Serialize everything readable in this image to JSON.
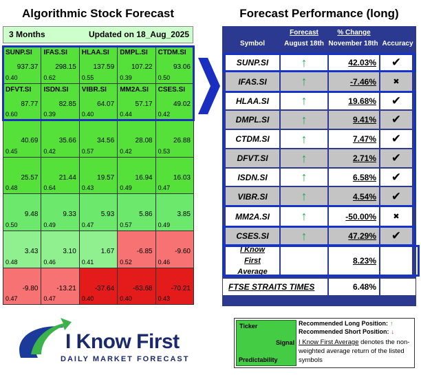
{
  "left": {
    "title": "Algorithmic Stock Forecast",
    "period": "3 Months",
    "updated": "Updated on 18_Aug_2025",
    "rows": [
      [
        {
          "ticker": "SUNP.SI",
          "signal": "937.37",
          "predictability": "0.40"
        },
        {
          "ticker": "IFAS.SI",
          "signal": "298.15",
          "predictability": "0.62"
        },
        {
          "ticker": "HLAA.SI",
          "signal": "137.59",
          "predictability": "0.55"
        },
        {
          "ticker": "DMPL.SI",
          "signal": "107.22",
          "predictability": "0.39"
        },
        {
          "ticker": "CTDM.SI",
          "signal": "93.06",
          "predictability": "0.50"
        }
      ],
      [
        {
          "ticker": "DFVT.SI",
          "signal": "87.77",
          "predictability": "0.60"
        },
        {
          "ticker": "ISDN.SI",
          "signal": "82.85",
          "predictability": "0.39"
        },
        {
          "ticker": "VIBR.SI",
          "signal": "64.07",
          "predictability": "0.40"
        },
        {
          "ticker": "MM2A.SI",
          "signal": "57.17",
          "predictability": "0.44"
        },
        {
          "ticker": "CSES.SI",
          "signal": "49.02",
          "predictability": "0.42"
        }
      ],
      [
        {
          "signal": "40.69",
          "predictability": "0.45"
        },
        {
          "signal": "35.66",
          "predictability": "0.42"
        },
        {
          "signal": "34.56",
          "predictability": "0.57"
        },
        {
          "signal": "28.08",
          "predictability": "0.42"
        },
        {
          "signal": "26.88",
          "predictability": "0.53"
        }
      ],
      [
        {
          "signal": "25.57",
          "predictability": "0.48"
        },
        {
          "signal": "21.44",
          "predictability": "0.64"
        },
        {
          "signal": "19.57",
          "predictability": "0.43"
        },
        {
          "signal": "16.94",
          "predictability": "0.49"
        },
        {
          "signal": "16.03",
          "predictability": "0.47"
        }
      ],
      [
        {
          "signal": "9.48",
          "predictability": "0.50"
        },
        {
          "signal": "9.33",
          "predictability": "0.49"
        },
        {
          "signal": "5.93",
          "predictability": "0.47"
        },
        {
          "signal": "5.86",
          "predictability": "0.57"
        },
        {
          "signal": "3.85",
          "predictability": "0.49"
        }
      ],
      [
        {
          "signal": "3.43",
          "predictability": "0.48"
        },
        {
          "signal": "3.10",
          "predictability": "0.46"
        },
        {
          "signal": "1.67",
          "predictability": "0.41"
        },
        {
          "signal": "-6.85",
          "predictability": "0.52"
        },
        {
          "signal": "-9.60",
          "predictability": "0.46"
        }
      ],
      [
        {
          "signal": "-9.80",
          "predictability": "0.47"
        },
        {
          "signal": "-13.21",
          "predictability": "0.47"
        },
        {
          "signal": "-37.64",
          "predictability": "0.40"
        },
        {
          "signal": "-63.68",
          "predictability": "0.40"
        },
        {
          "signal": "-70.21",
          "predictability": "0.43"
        }
      ]
    ]
  },
  "right": {
    "title": "Forecast Performance (long)",
    "headers": {
      "symbol": "Symbol",
      "forecast": "Forecast",
      "forecast_date": "August 18th",
      "change": "% Change",
      "change_date": "November 18th",
      "accuracy": "Accuracy"
    },
    "rows": [
      {
        "symbol": "SUNP.SI",
        "forecast": "↑",
        "change": "42.03%",
        "accuracy": "✔"
      },
      {
        "symbol": "IFAS.SI",
        "forecast": "↑",
        "change": "-7.46%",
        "accuracy": "✖"
      },
      {
        "symbol": "HLAA.SI",
        "forecast": "↑",
        "change": "19.68%",
        "accuracy": "✔"
      },
      {
        "symbol": "DMPL.SI",
        "forecast": "↑",
        "change": "9.41%",
        "accuracy": "✔"
      },
      {
        "symbol": "CTDM.SI",
        "forecast": "↑",
        "change": "7.47%",
        "accuracy": "✔"
      },
      {
        "symbol": "DFVT.SI",
        "forecast": "↑",
        "change": "2.71%",
        "accuracy": "✔"
      },
      {
        "symbol": "ISDN.SI",
        "forecast": "↑",
        "change": "6.58%",
        "accuracy": "✔"
      },
      {
        "symbol": "VIBR.SI",
        "forecast": "↑",
        "change": "4.54%",
        "accuracy": "✔"
      },
      {
        "symbol": "MM2A.SI",
        "forecast": "↑",
        "change": "-50.00%",
        "accuracy": "✖"
      },
      {
        "symbol": "CSES.SI",
        "forecast": "↑",
        "change": "47.29%",
        "accuracy": "✔"
      }
    ],
    "average": {
      "label": "I Know First Average",
      "change": "8.23%"
    },
    "benchmark": {
      "label": "FTSE STRAITS TIMES",
      "change": "6.48%"
    }
  },
  "legend": {
    "ticker": "Ticker",
    "signal": "Signal",
    "predictability": "Predictability",
    "long": "Recommended Long Position:",
    "long_icon": "↑",
    "short": "Recommended Short Position:",
    "short_icon": "↓",
    "average_name": "I Know First Average",
    "average_note": " denotes the non-weighted average return of the listed symbols"
  },
  "logo": {
    "name": "I Know First",
    "tagline": "DAILY MARKET FORECAST"
  }
}
